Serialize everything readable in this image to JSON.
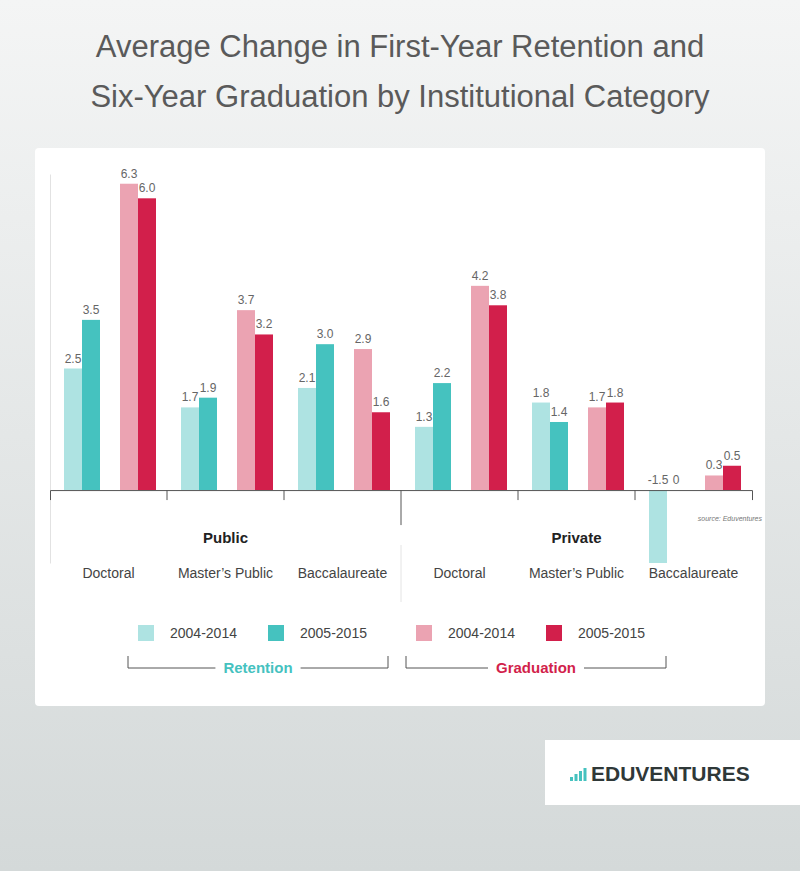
{
  "chart_data": {
    "type": "bar",
    "title": "Average Change in First-Year Retention and Six-Year Graduation by Institutional Category",
    "categories": [
      "Doctoral",
      "Master’s Public",
      "Baccalaureate",
      "Doctoral",
      "Master’s Public",
      "Baccalaureate"
    ],
    "category_groups": [
      "Public",
      "Public",
      "Public",
      "Private",
      "Private",
      "Private"
    ],
    "series": [
      {
        "name": "2004-2014",
        "group": "Retention",
        "color": "#aee3e2",
        "values": [
          2.5,
          1.7,
          2.1,
          1.3,
          1.8,
          -1.5
        ],
        "value_labels": [
          "2.5",
          "1.7",
          "2.1",
          "1.3",
          "1.8",
          "-1.5"
        ]
      },
      {
        "name": "2005-2015",
        "group": "Retention",
        "color": "#45c2bf",
        "values": [
          3.5,
          1.9,
          3.0,
          2.2,
          1.4,
          0
        ],
        "value_labels": [
          "3.5",
          "1.9",
          "3.0",
          "2.2",
          "1.4",
          "0"
        ]
      },
      {
        "name": "2004-2014",
        "group": "Graduation",
        "color": "#eba3b2",
        "values": [
          6.3,
          3.7,
          2.9,
          4.2,
          1.7,
          0.3
        ],
        "value_labels": [
          "6.3",
          "3.7",
          "2.9",
          "4.2",
          "1.7",
          "0.3"
        ]
      },
      {
        "name": "2005-2015",
        "group": "Graduation",
        "color": "#d21f4b",
        "values": [
          6.0,
          3.2,
          1.6,
          3.8,
          1.8,
          0.5
        ],
        "value_labels": [
          "6.0",
          "3.2",
          "1.6",
          "3.8",
          "1.8",
          "0.5"
        ]
      }
    ],
    "ylim": [
      -1.5,
      6.5
    ],
    "yticks": [],
    "grid": false,
    "legend": "bottom",
    "data_labels": true,
    "tick_labels": "x",
    "annotation": "source: Eduventures",
    "logo": "EDUVENTURES"
  }
}
